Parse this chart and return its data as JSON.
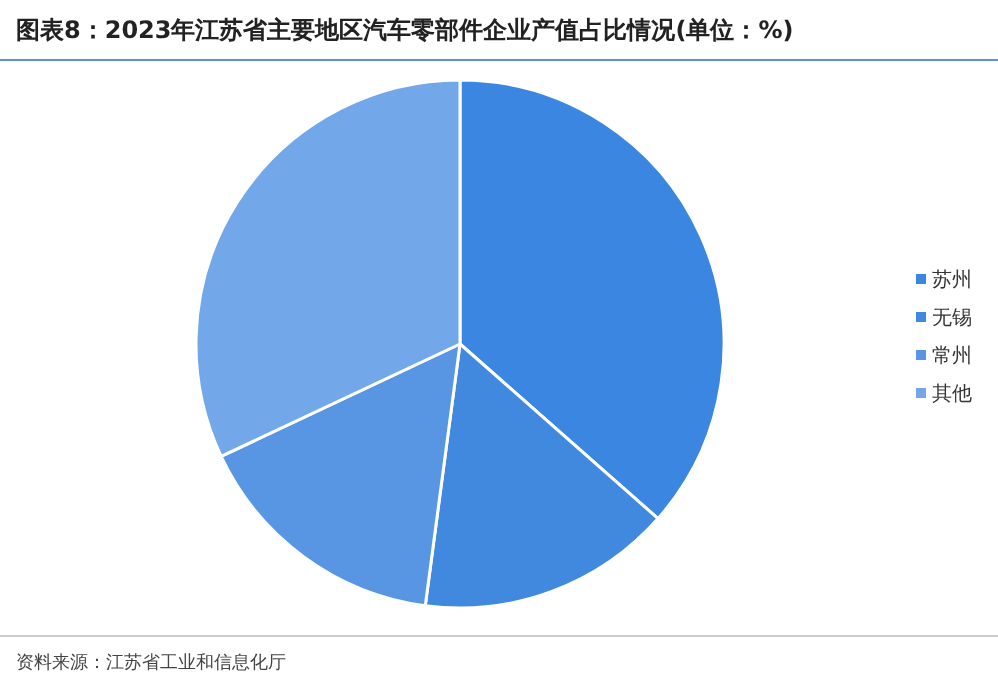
{
  "chart_data": {
    "type": "pie",
    "title": "图表8：2023年江苏省主要地区汽车零部件企业产值占比情况(单位：%)",
    "categories": [
      "苏州",
      "无锡",
      "常州",
      "其他"
    ],
    "values": [
      36.5,
      15.6,
      15.9,
      32.0
    ],
    "colors": [
      "#3a86e0",
      "#4189df",
      "#5896e3",
      "#72a8e9"
    ],
    "legend": "right",
    "annotations": [
      "资料来源：江苏省工业和信息化厅"
    ]
  }
}
